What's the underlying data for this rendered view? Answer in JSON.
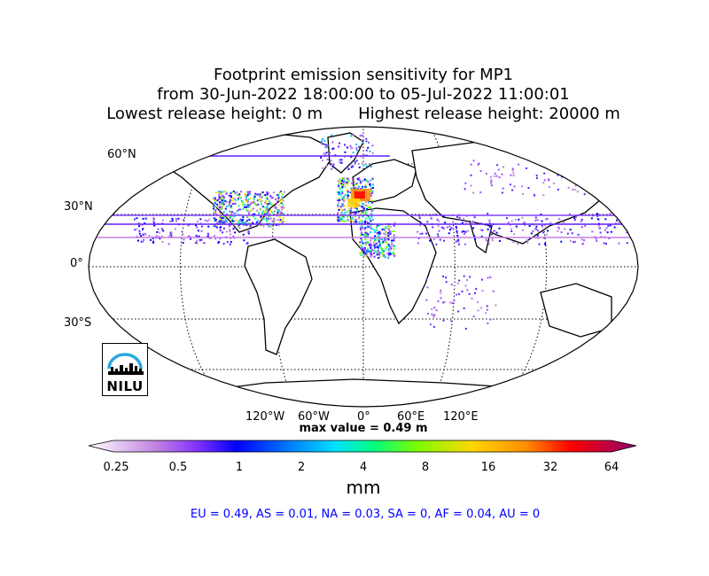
{
  "title": {
    "line1": "Footprint emission sensitivity for MP1",
    "line2": "from 30-Jun-2022 18:00:00 to 05-Jul-2022 11:00:01",
    "line3": "Lowest release height: 0 m       Highest release height: 20000 m"
  },
  "map": {
    "projection": "Robinson",
    "lat_labels": [
      "60°N",
      "30°N",
      "0°",
      "30°S"
    ],
    "lon_labels": [
      "120°W",
      "60°W",
      "0°",
      "60°E",
      "120°E"
    ],
    "max_value_label": "max value = 0.49 m",
    "land_color": "#ffffff",
    "coast_color": "#000000",
    "gridline_style": "dotted",
    "logo_text": "NILU",
    "logo_arc_color": "#29a8e0"
  },
  "colorbar": {
    "ticks": [
      "0.25",
      "0.5",
      "1",
      "2",
      "4",
      "8",
      "16",
      "32",
      "64"
    ],
    "units": "mm",
    "colors": [
      "#ffffff",
      "#d9a6e8",
      "#9b30ff",
      "#0000ff",
      "#00bfff",
      "#00ff80",
      "#7cfc00",
      "#ffd700",
      "#ff8c00",
      "#ff0000",
      "#800080"
    ]
  },
  "stats": "EU = 0.49,  AS = 0.01,  NA = 0.03,  SA = 0,  AF = 0.04,  AU = 0"
}
